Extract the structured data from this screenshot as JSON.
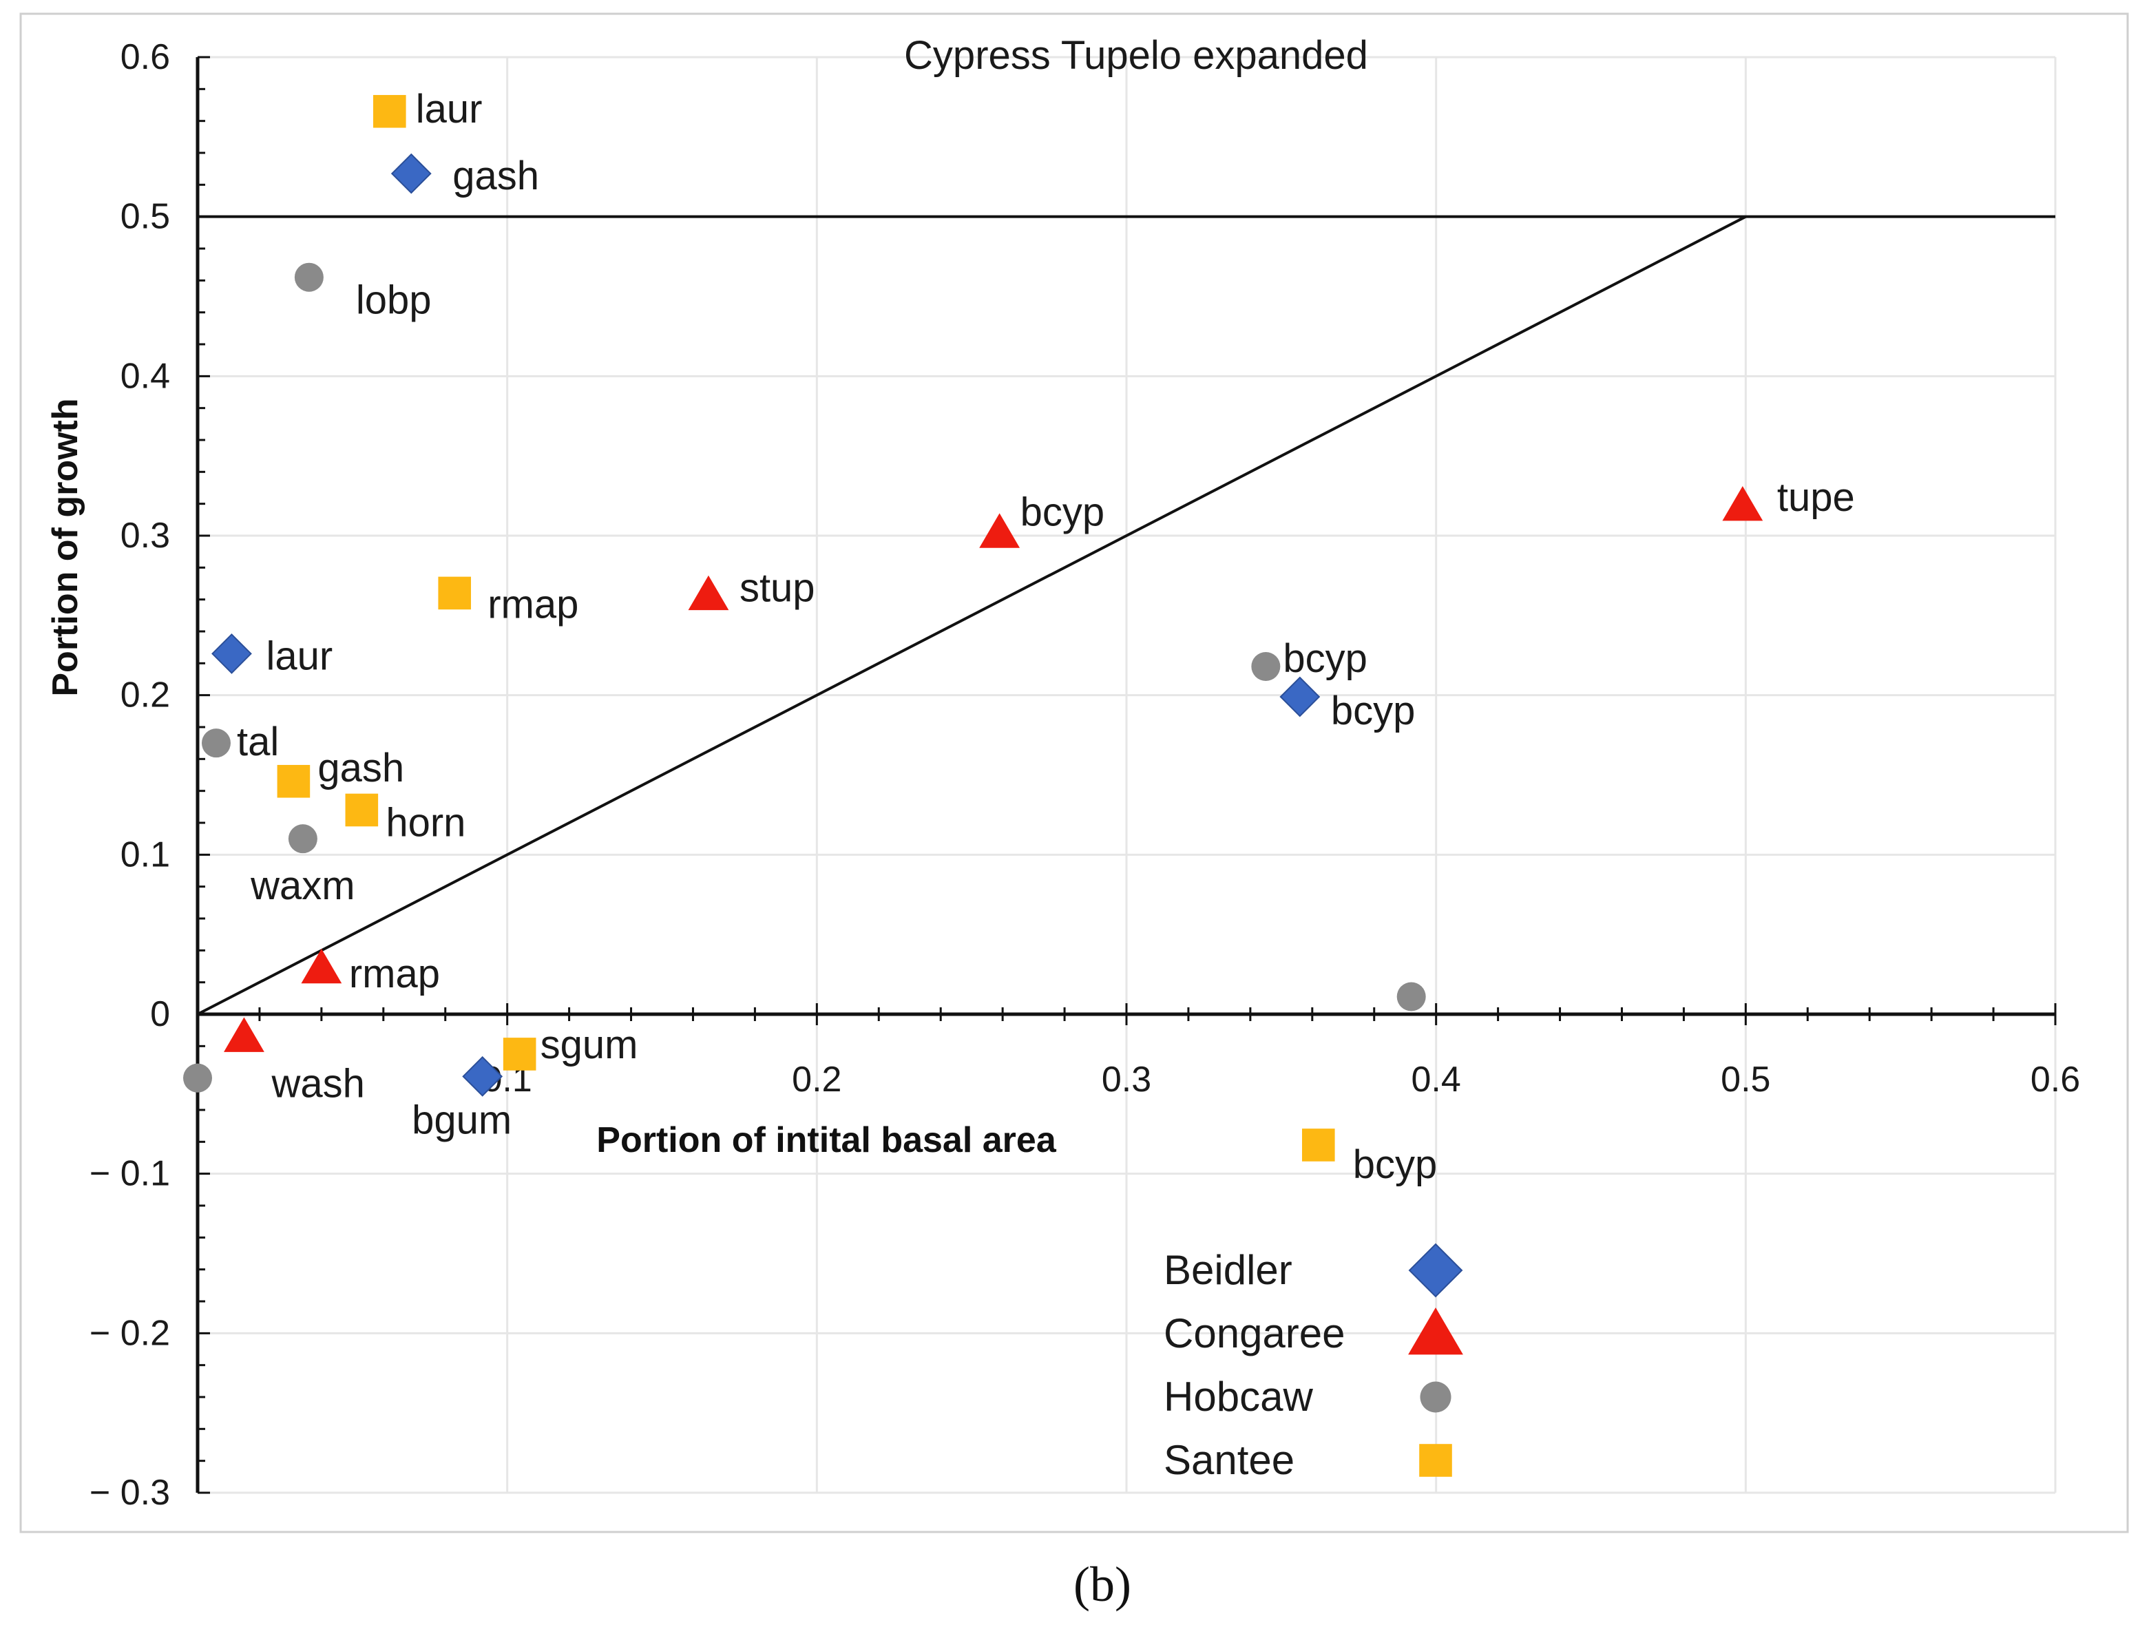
{
  "caption": "(b)",
  "chart_data": {
    "type": "scatter",
    "title": "Cypress Tupelo   expanded",
    "xlabel": "Portion of intital basal area",
    "ylabel": "Portion  of  growth",
    "xlim": [
      0,
      0.6
    ],
    "ylim": [
      -0.3,
      0.6
    ],
    "x_ticks": [
      {
        "value": 0,
        "label": "0"
      },
      {
        "value": 0.1,
        "label": "0.1"
      },
      {
        "value": 0.2,
        "label": "0.2"
      },
      {
        "value": 0.3,
        "label": "0.3"
      },
      {
        "value": 0.4,
        "label": "0.4"
      },
      {
        "value": 0.5,
        "label": "0.5"
      },
      {
        "value": 0.6,
        "label": "0.6"
      }
    ],
    "y_ticks": [
      {
        "value": 0.6,
        "label": "0.6"
      },
      {
        "value": 0.5,
        "label": "0.5"
      },
      {
        "value": 0.4,
        "label": "0.4"
      },
      {
        "value": 0.3,
        "label": "0.3"
      },
      {
        "value": 0.2,
        "label": "0.2"
      },
      {
        "value": 0.1,
        "label": "0.1"
      },
      {
        "value": 0,
        "label": "0"
      },
      {
        "value": -0.1,
        "label": "− 0.1"
      },
      {
        "value": -0.2,
        "label": "− 0.2"
      },
      {
        "value": -0.3,
        "label": "− 0.3"
      }
    ],
    "grid": true,
    "legend_position": "bottom-center",
    "reference_lines": [
      {
        "name": "one-to-one-line",
        "x1": 0,
        "y1": 0,
        "x2": 0.5,
        "y2": 0.5
      },
      {
        "name": "half-growth-line",
        "x1": 0,
        "y1": 0.5,
        "x2": 0.6,
        "y2": 0.5
      }
    ],
    "series": [
      {
        "name": "Beidler",
        "marker": "diamond",
        "color": "#3a68c4",
        "points": [
          {
            "label": "gash",
            "x": 0.069,
            "y": 0.527
          },
          {
            "label": "laur",
            "x": 0.011,
            "y": 0.226
          },
          {
            "label": "bcyp",
            "x": 0.356,
            "y": 0.199
          },
          {
            "label": "bgum",
            "x": 0.092,
            "y": -0.039
          }
        ]
      },
      {
        "name": "Congaree",
        "marker": "triangle",
        "color": "#ee1c10",
        "points": [
          {
            "label": "bcyp",
            "x": 0.259,
            "y": 0.302
          },
          {
            "label": "stup",
            "x": 0.165,
            "y": 0.263
          },
          {
            "label": "tupe",
            "x": 0.499,
            "y": 0.319
          },
          {
            "label": "rmap",
            "x": 0.04,
            "y": 0.029
          },
          {
            "label": "wash",
            "x": 0.015,
            "y": -0.014
          }
        ]
      },
      {
        "name": "Hobcaw",
        "marker": "circle",
        "color": "#8a8a8a",
        "points": [
          {
            "label": "lobp",
            "x": 0.036,
            "y": 0.462
          },
          {
            "label": "bcyp",
            "x": 0.345,
            "y": 0.218
          },
          {
            "label": "tal",
            "x": 0.006,
            "y": 0.17
          },
          {
            "label": "waxm",
            "x": 0.034,
            "y": 0.11
          },
          {
            "label": "",
            "x": 0.392,
            "y": 0.011
          },
          {
            "label": "",
            "x": 0.0,
            "y": -0.04
          }
        ]
      },
      {
        "name": "Santee",
        "marker": "square",
        "color": "#fdb813",
        "points": [
          {
            "label": "laur",
            "x": 0.062,
            "y": 0.566
          },
          {
            "label": "rmap",
            "x": 0.083,
            "y": 0.264
          },
          {
            "label": "gash",
            "x": 0.031,
            "y": 0.146
          },
          {
            "label": "horn",
            "x": 0.053,
            "y": 0.128
          },
          {
            "label": "sgum",
            "x": 0.104,
            "y": -0.025
          },
          {
            "label": "bcyp",
            "x": 0.362,
            "y": -0.082
          }
        ]
      }
    ]
  }
}
